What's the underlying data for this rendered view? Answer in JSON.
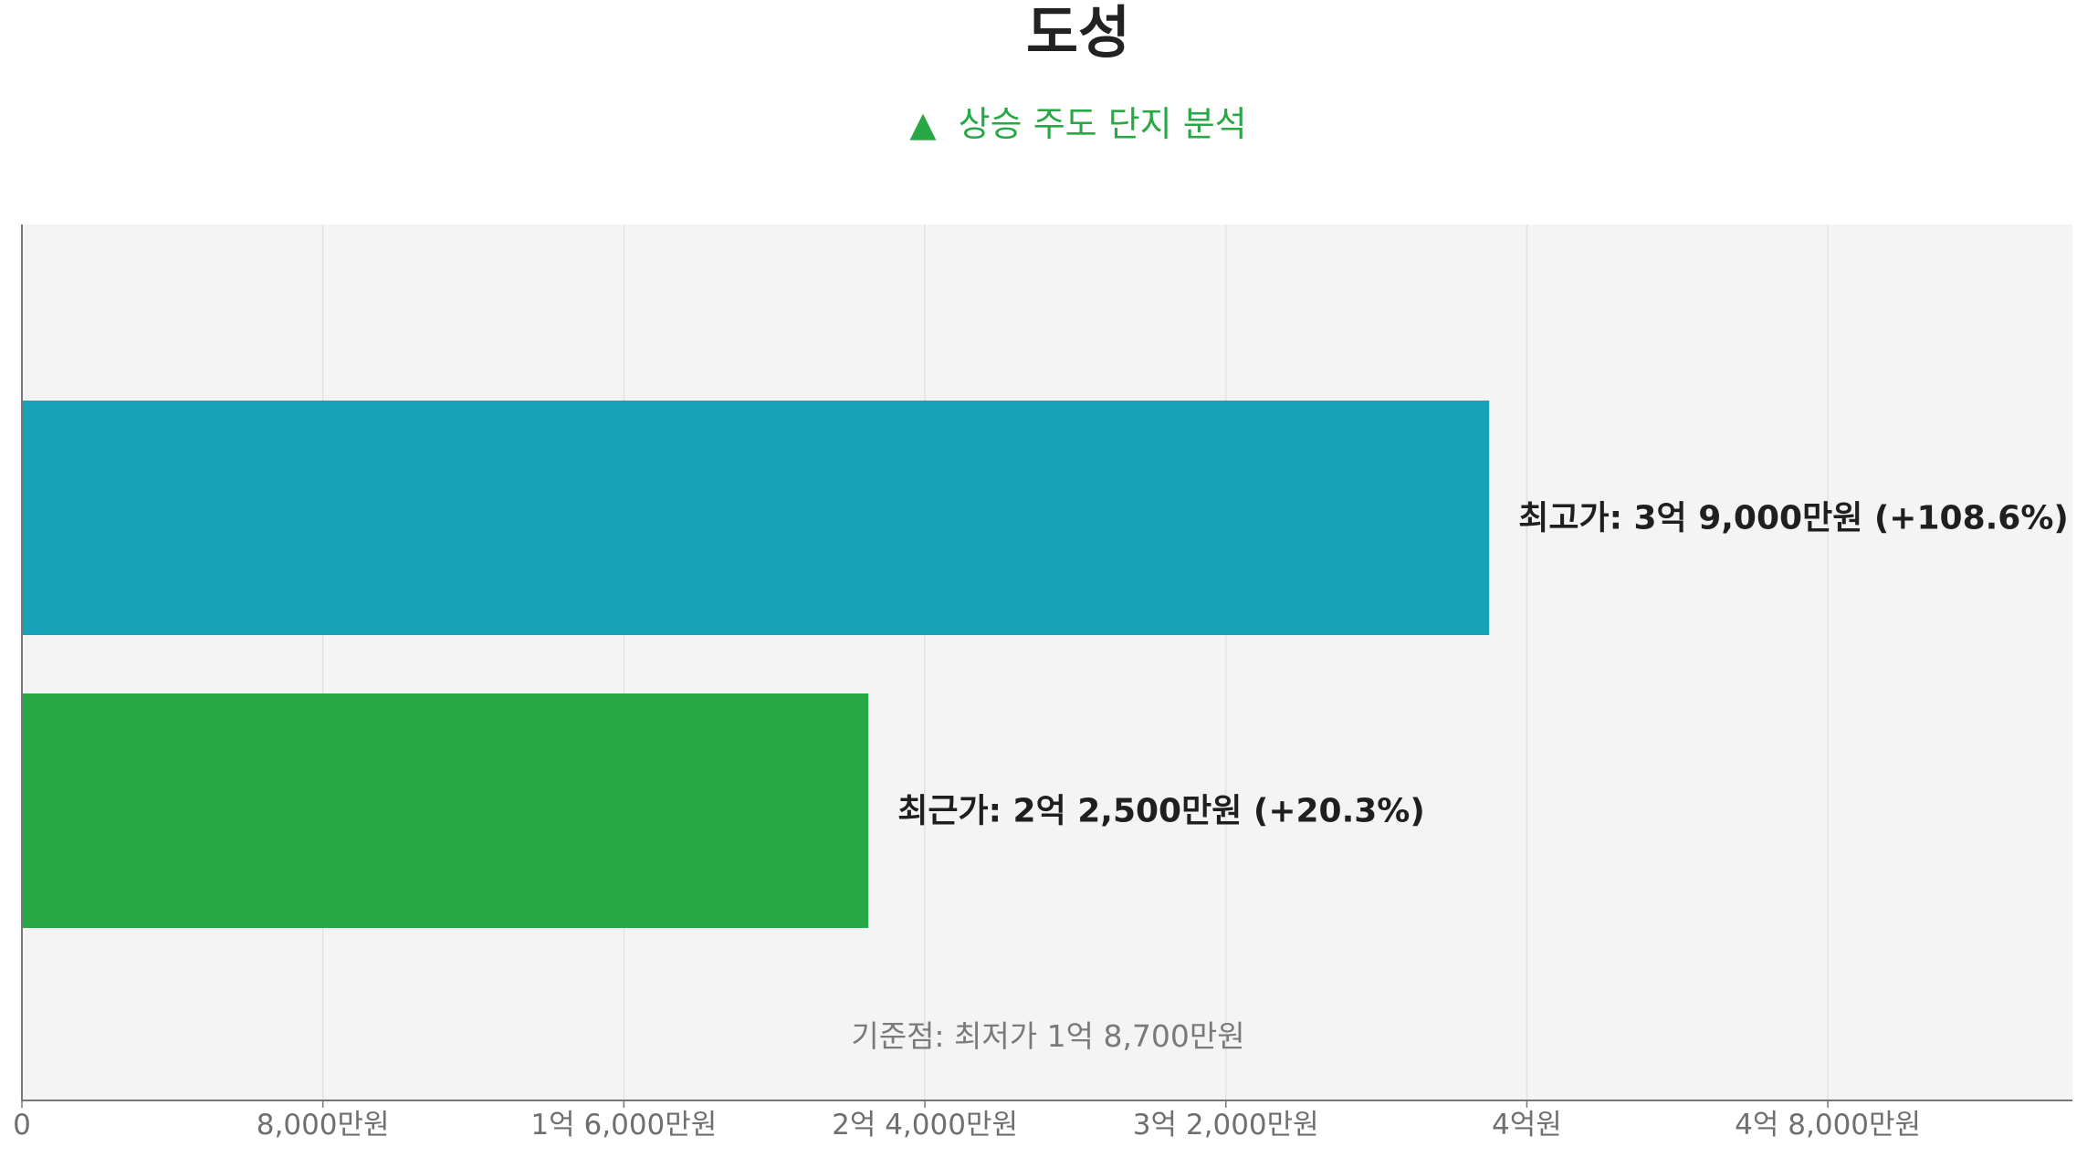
{
  "title": "도성",
  "subtitle": {
    "marker": "▲",
    "text": "상승 주도 단지 분석",
    "color": "#28a745"
  },
  "colors": {
    "plot_bg": "#f4f4f4",
    "grid": "#e3e3e3",
    "axis": "#777777",
    "highest": "#18a2b8",
    "recent": "#28a745"
  },
  "chart_data": {
    "type": "bar",
    "orientation": "horizontal",
    "categories": [
      "최고가",
      "최근가"
    ],
    "values": [
      39000,
      22500
    ],
    "unit": "만원",
    "xlim": [
      0,
      54500
    ],
    "grid": true,
    "xticks": [
      {
        "value": 0,
        "label": "0"
      },
      {
        "value": 8000,
        "label": "8,000만원"
      },
      {
        "value": 16000,
        "label": "1억 6,000만원"
      },
      {
        "value": 24000,
        "label": "2억 4,000만원"
      },
      {
        "value": 32000,
        "label": "3억 2,000만원"
      },
      {
        "value": 40000,
        "label": "4억원"
      },
      {
        "value": 48000,
        "label": "4억 8,000만원"
      }
    ],
    "bars": [
      {
        "name": "최고가",
        "value": 39000,
        "label": "최고가: 3억 9,000만원 (+108.6%)",
        "color": "#18a2b8"
      },
      {
        "name": "최근가",
        "value": 22500,
        "label": "최근가: 2억 2,500만원 (+20.3%)",
        "color": "#28a745"
      }
    ],
    "baseline": {
      "value": 18700,
      "label": "기준점: 최저가 1억 8,700만원"
    }
  }
}
